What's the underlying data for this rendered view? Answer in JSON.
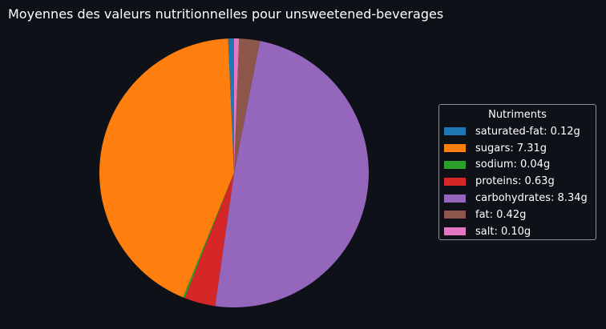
{
  "title": "Moyennes des valeurs nutritionnelles pour unsweetened-beverages",
  "chart_data": {
    "type": "pie",
    "title": "Moyennes des valeurs nutritionnelles pour unsweetened-beverages",
    "legend_title": "Nutriments",
    "legend_position": "right",
    "unit": "g",
    "start_angle_deg": 90,
    "direction": "counterclockwise",
    "slices": [
      {
        "name": "saturated-fat",
        "value": 0.12,
        "label": "saturated-fat: 0.12g",
        "color": "#1f77b4"
      },
      {
        "name": "sugars",
        "value": 7.31,
        "label": "sugars: 7.31g",
        "color": "#ff7f0e"
      },
      {
        "name": "sodium",
        "value": 0.04,
        "label": "sodium: 0.04g",
        "color": "#2ca02c"
      },
      {
        "name": "proteins",
        "value": 0.63,
        "label": "proteins: 0.63g",
        "color": "#d62728"
      },
      {
        "name": "carbohydrates",
        "value": 8.34,
        "label": "carbohydrates: 8.34g",
        "color": "#9467bd"
      },
      {
        "name": "fat",
        "value": 0.42,
        "label": "fat: 0.42g",
        "color": "#8c564b"
      },
      {
        "name": "salt",
        "value": 0.1,
        "label": "salt: 0.10g",
        "color": "#e377c2"
      }
    ]
  }
}
